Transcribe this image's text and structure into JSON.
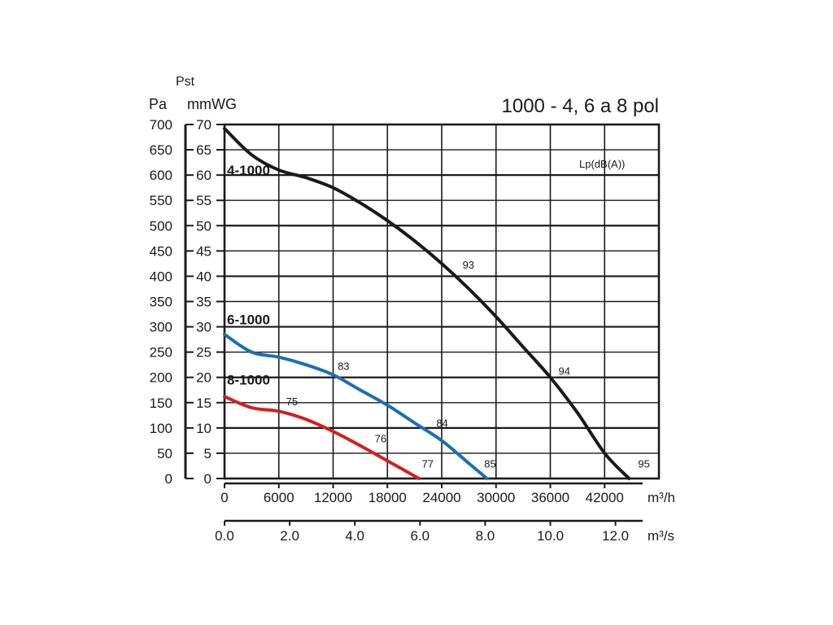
{
  "chart_data": {
    "type": "line",
    "title": "1000 - 4, 6 a 8 pol",
    "legend_note": "Lp(dB(A))",
    "y_title": "Pst",
    "y_unit_left": "Pa",
    "y_unit_right": "mmWG",
    "x_unit_primary": "m³/h",
    "x_unit_secondary": "m³/s",
    "grid": true,
    "xlim": [
      0,
      48000
    ],
    "ylim": [
      0,
      70
    ],
    "x_ticks": [
      "0",
      "6000",
      "12000",
      "18000",
      "24000",
      "30000",
      "36000",
      "42000"
    ],
    "x2_ticks": [
      "0.0",
      "2.0",
      "4.0",
      "6.0",
      "8.0",
      "10.0",
      "12.0"
    ],
    "y_ticks_pa": [
      "0",
      "50",
      "100",
      "150",
      "200",
      "250",
      "300",
      "350",
      "400",
      "450",
      "500",
      "550",
      "600",
      "650",
      "700"
    ],
    "y_ticks_mmwg": [
      "0",
      "5",
      "10",
      "15",
      "20",
      "25",
      "30",
      "35",
      "40",
      "45",
      "50",
      "55",
      "60",
      "65",
      "70"
    ],
    "series": [
      {
        "name": "4-1000",
        "color": "#1a1a1a",
        "x": [
          0,
          3000,
          6000,
          9000,
          12000,
          15000,
          18000,
          21000,
          24000,
          27000,
          30000,
          33000,
          36000,
          39000,
          42000,
          44700
        ],
        "y": [
          69.2,
          64,
          61,
          59.5,
          57.5,
          54.5,
          51,
          47,
          42.5,
          37.5,
          32,
          26,
          20,
          13,
          5,
          0
        ],
        "noise_labels": [
          {
            "text": "93",
            "x": 26300,
            "y": 41.5
          },
          {
            "text": "94",
            "x": 36900,
            "y": 20.5
          },
          {
            "text": "95",
            "x": 45700,
            "y": 2.2
          }
        ]
      },
      {
        "name": "6-1000",
        "color": "#1f6fb2",
        "x": [
          0,
          3000,
          6000,
          9000,
          12000,
          15000,
          18000,
          21000,
          24000,
          27000,
          29000
        ],
        "y": [
          28.5,
          25,
          24,
          22.5,
          20.5,
          17.5,
          14.5,
          11,
          7.5,
          3,
          0
        ],
        "noise_labels": [
          {
            "text": "83",
            "x": 12500,
            "y": 21.5
          },
          {
            "text": "84",
            "x": 23400,
            "y": 10.2
          },
          {
            "text": "85",
            "x": 28700,
            "y": 2.2
          }
        ]
      },
      {
        "name": "8-1000",
        "color": "#d42020",
        "x": [
          0,
          3000,
          6000,
          9000,
          12000,
          15000,
          18000,
          21500
        ],
        "y": [
          16.2,
          14,
          13.3,
          11.7,
          9.3,
          6.5,
          3.5,
          0
        ],
        "noise_labels": [
          {
            "text": "75",
            "x": 6800,
            "y": 14.5
          },
          {
            "text": "76",
            "x": 16600,
            "y": 7.2
          },
          {
            "text": "77",
            "x": 21800,
            "y": 2.2
          }
        ]
      }
    ]
  }
}
